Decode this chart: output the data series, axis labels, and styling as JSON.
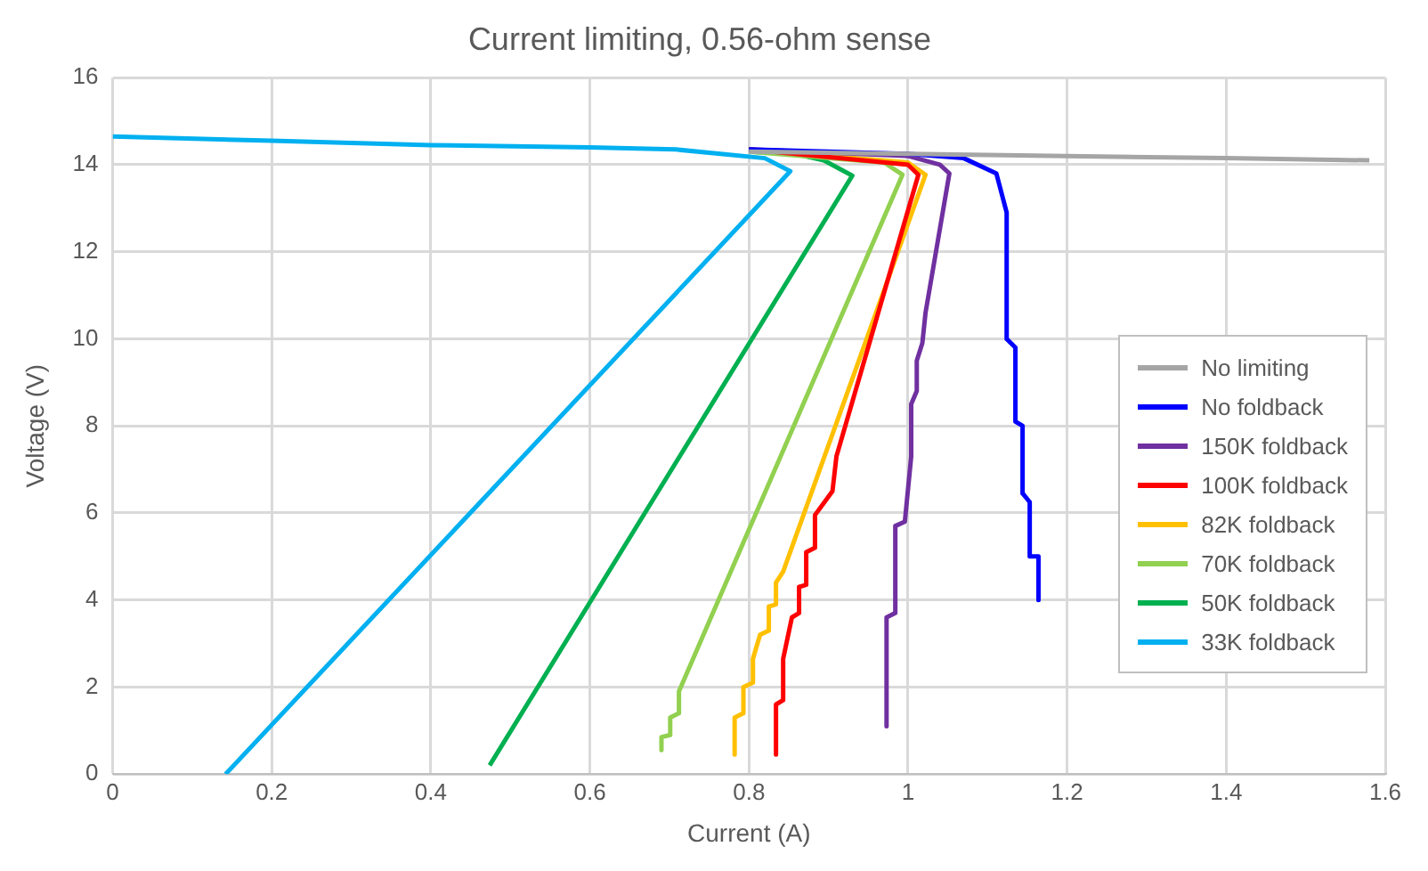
{
  "chart_data": {
    "type": "line",
    "title": "Current limiting, 0.56-ohm sense",
    "xlabel": "Current (A)",
    "ylabel": "Voltage (V)",
    "xlim": [
      0,
      1.6
    ],
    "xticks": [
      0,
      0.2,
      0.4,
      0.6,
      0.8,
      1,
      1.2,
      1.4,
      1.6
    ],
    "ylim": [
      0,
      16
    ],
    "yticks": [
      0,
      2,
      4,
      6,
      8,
      10,
      12,
      14,
      16
    ],
    "grid": true,
    "legend": "right",
    "marker": "none",
    "line_style": "solid",
    "series": [
      {
        "name": "No limiting",
        "color": "#a5a5a5",
        "x": [
          0.8,
          1,
          1.2,
          1.4,
          1.58
        ],
        "values": [
          14.3,
          14.25,
          14.2,
          14.15,
          14.1
        ]
      },
      {
        "name": "No foldback",
        "color": "#0000ff",
        "x": [
          0.8,
          1,
          1.07,
          1.111,
          1.124,
          1.124,
          1.135,
          1.135,
          1.144,
          1.144,
          1.153,
          1.153,
          1.164,
          1.164
        ],
        "values": [
          14.35,
          14.25,
          14.15,
          13.8,
          12.9,
          10,
          9.8,
          8.1,
          8,
          6.45,
          6.25,
          5,
          5,
          4
        ]
      },
      {
        "name": "150K foldback",
        "color": "#7030a0",
        "x": [
          0.8,
          1,
          1.04,
          1.052,
          1.022,
          1.018,
          1.011,
          1.011,
          1.004,
          1.004,
          0.996,
          0.984,
          0.984,
          0.973,
          0.973
        ],
        "values": [
          14.35,
          14.2,
          14,
          13.8,
          10.6,
          9.9,
          9.5,
          8.8,
          8.5,
          7.3,
          5.8,
          5.7,
          3.7,
          3.6,
          1.1
        ]
      },
      {
        "name": "100K foldback",
        "color": "#ff0000",
        "x": [
          0.8,
          1,
          1.013,
          0.91,
          0.905,
          0.883,
          0.883,
          0.872,
          0.872,
          0.863,
          0.863,
          0.854,
          0.843,
          0.843,
          0.834,
          0.834
        ],
        "values": [
          14.35,
          14,
          13.77,
          7.3,
          6.5,
          5.95,
          5.2,
          5.1,
          4.35,
          4.3,
          3.7,
          3.6,
          2.65,
          1.7,
          1.6,
          0.45
        ]
      },
      {
        "name": "82K foldback",
        "color": "#ffc000",
        "x": [
          0.8,
          1,
          1.022,
          0.895,
          0.843,
          0.834,
          0.834,
          0.825,
          0.825,
          0.814,
          0.805,
          0.805,
          0.793,
          0.793,
          0.782,
          0.782
        ],
        "values": [
          14.35,
          14.05,
          13.77,
          7.3,
          4.65,
          4.4,
          3.9,
          3.85,
          3.3,
          3.2,
          2.65,
          2.1,
          2,
          1.4,
          1.3,
          0.45
        ]
      },
      {
        "name": "70K foldback",
        "color": "#92d050",
        "x": [
          0.8,
          0.97,
          0.993,
          0.712,
          0.712,
          0.701,
          0.701,
          0.69,
          0.69
        ],
        "values": [
          14.3,
          14.05,
          13.77,
          1.9,
          1.4,
          1.3,
          0.9,
          0.85,
          0.55
        ]
      },
      {
        "name": "50K foldback",
        "color": "#00b050",
        "x": [
          0.8,
          0.858,
          0.894,
          0.93,
          0.474
        ],
        "values": [
          14.3,
          14.25,
          14.1,
          13.75,
          0.2
        ]
      },
      {
        "name": "33K foldback",
        "color": "#00b0f0",
        "x": [
          0,
          0.2,
          0.4,
          0.6,
          0.708,
          0.82,
          0.852,
          0.142
        ],
        "values": [
          14.65,
          14.55,
          14.45,
          14.4,
          14.35,
          14.15,
          13.85,
          0
        ]
      }
    ]
  }
}
